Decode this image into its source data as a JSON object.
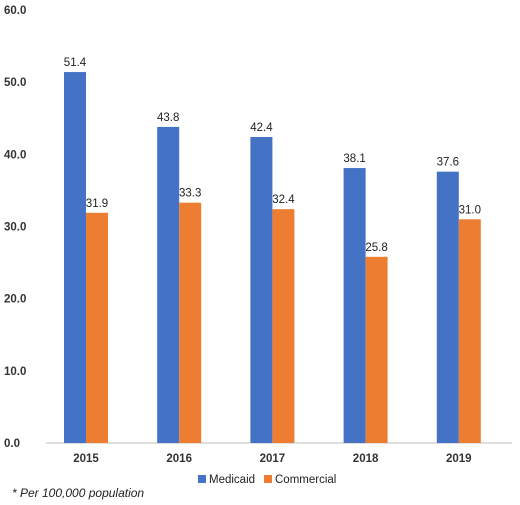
{
  "chart_data": {
    "type": "bar",
    "categories": [
      "2015",
      "2016",
      "2017",
      "2018",
      "2019"
    ],
    "series": [
      {
        "name": "Medicaid",
        "color": "#4472c4",
        "values": [
          51.4,
          43.8,
          42.4,
          38.1,
          37.6
        ],
        "labels": [
          "51.4",
          "43.8",
          "42.4",
          "38.1",
          "37.6"
        ]
      },
      {
        "name": "Commercial",
        "color": "#ed7d31",
        "values": [
          31.9,
          33.3,
          32.4,
          25.8,
          31.0
        ],
        "labels": [
          "31.9",
          "33.3",
          "32.4",
          "25.8",
          "31.0"
        ]
      }
    ],
    "ylim": [
      0,
      60
    ],
    "yticks": [
      "0.0",
      "10.0",
      "20.0",
      "30.0",
      "40.0",
      "50.0",
      "60.0"
    ],
    "grid": false,
    "legend_position": "bottom"
  },
  "footnote": "* Per 100,000 population"
}
